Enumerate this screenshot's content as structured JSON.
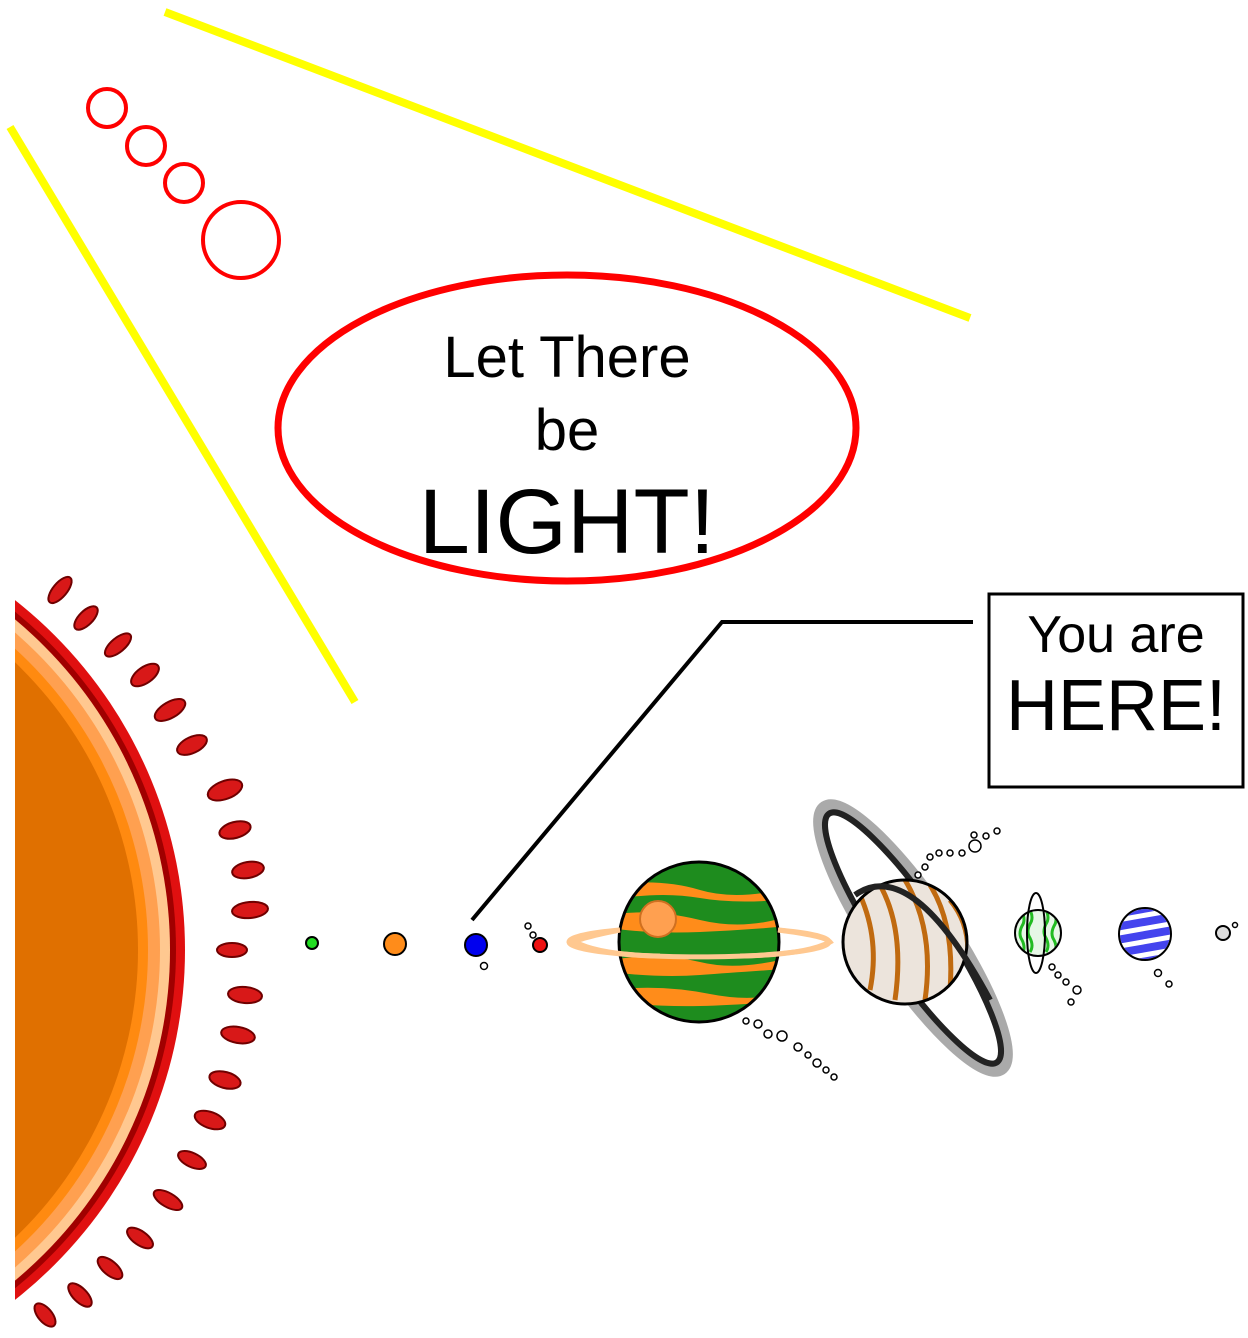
{
  "speech_bubble": {
    "lines": [
      "Let There",
      "be",
      "LIGHT!"
    ]
  },
  "callout": {
    "lines": [
      "You are",
      "HERE!"
    ]
  }
}
